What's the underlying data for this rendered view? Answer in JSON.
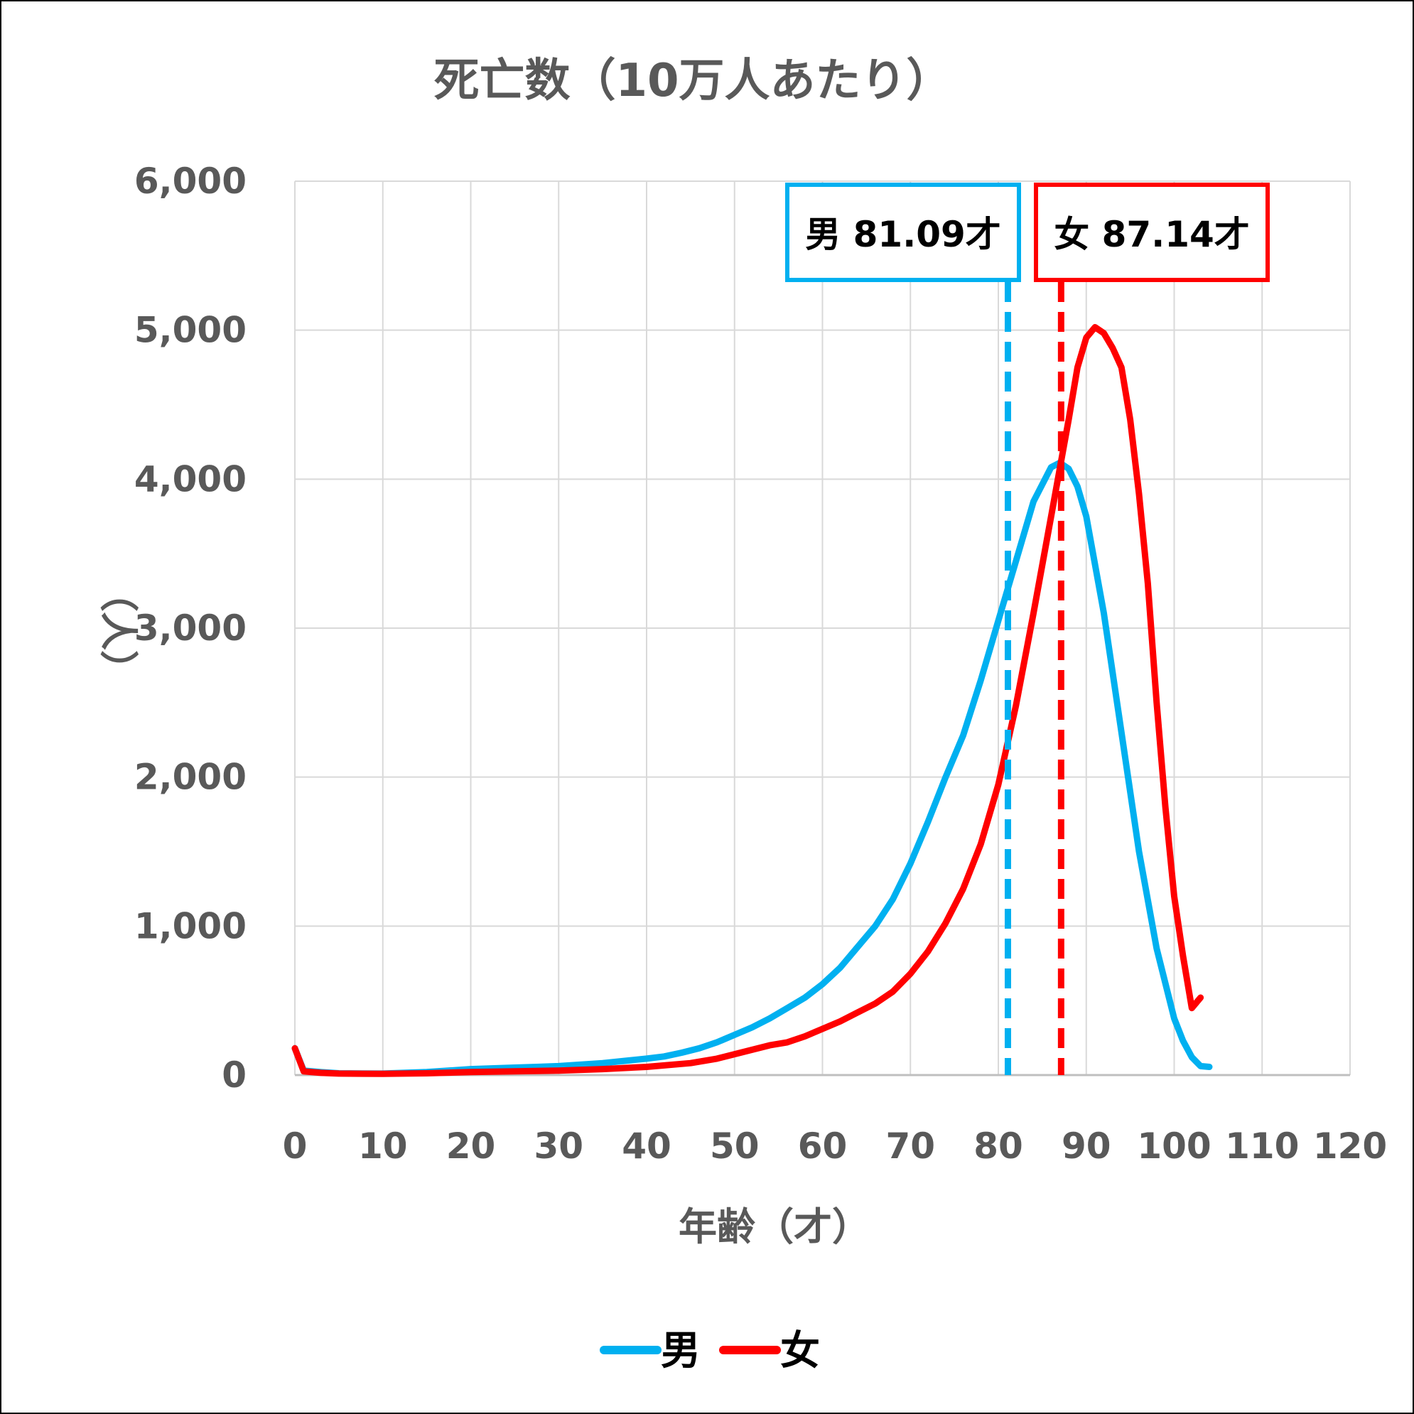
{
  "chart_data": {
    "type": "line",
    "title": "死亡数（10万人あたり）",
    "xlabel": "年齢（才）",
    "ylabel": "（人）",
    "xlim": [
      0,
      120
    ],
    "ylim": [
      0,
      6000
    ],
    "xticks": [
      0,
      10,
      20,
      30,
      40,
      50,
      60,
      70,
      80,
      90,
      100,
      110,
      120
    ],
    "xtick_labels": [
      "0",
      "10",
      "20",
      "30",
      "40",
      "50",
      "60",
      "70",
      "80",
      "90",
      "100",
      "110",
      "120"
    ],
    "yticks": [
      0,
      1000,
      2000,
      3000,
      4000,
      5000,
      6000
    ],
    "ytick_labels": [
      "0",
      "1,000",
      "2,000",
      "3,000",
      "4,000",
      "5,000",
      "6,000"
    ],
    "grid": true,
    "legend_position": "bottom",
    "series": [
      {
        "name": "男",
        "color": "#00B0F0",
        "points": [
          [
            0,
            180
          ],
          [
            1,
            30
          ],
          [
            3,
            20
          ],
          [
            5,
            12
          ],
          [
            10,
            10
          ],
          [
            15,
            20
          ],
          [
            20,
            40
          ],
          [
            25,
            50
          ],
          [
            30,
            60
          ],
          [
            35,
            80
          ],
          [
            40,
            110
          ],
          [
            42,
            125
          ],
          [
            44,
            150
          ],
          [
            46,
            180
          ],
          [
            48,
            220
          ],
          [
            50,
            270
          ],
          [
            52,
            320
          ],
          [
            54,
            380
          ],
          [
            56,
            450
          ],
          [
            58,
            520
          ],
          [
            60,
            610
          ],
          [
            62,
            720
          ],
          [
            64,
            860
          ],
          [
            66,
            1000
          ],
          [
            68,
            1180
          ],
          [
            70,
            1420
          ],
          [
            72,
            1700
          ],
          [
            74,
            2000
          ],
          [
            76,
            2280
          ],
          [
            78,
            2650
          ],
          [
            80,
            3050
          ],
          [
            82,
            3450
          ],
          [
            84,
            3850
          ],
          [
            86,
            4080
          ],
          [
            87,
            4110
          ],
          [
            88,
            4070
          ],
          [
            89,
            3950
          ],
          [
            90,
            3750
          ],
          [
            92,
            3100
          ],
          [
            94,
            2300
          ],
          [
            96,
            1500
          ],
          [
            98,
            850
          ],
          [
            100,
            380
          ],
          [
            101,
            230
          ],
          [
            102,
            120
          ],
          [
            103,
            60
          ],
          [
            104,
            55
          ]
        ]
      },
      {
        "name": "女",
        "color": "#FF0000",
        "points": [
          [
            0,
            180
          ],
          [
            1,
            25
          ],
          [
            3,
            15
          ],
          [
            5,
            10
          ],
          [
            10,
            8
          ],
          [
            15,
            12
          ],
          [
            20,
            20
          ],
          [
            25,
            25
          ],
          [
            30,
            30
          ],
          [
            35,
            40
          ],
          [
            40,
            55
          ],
          [
            45,
            80
          ],
          [
            48,
            110
          ],
          [
            50,
            140
          ],
          [
            52,
            170
          ],
          [
            54,
            200
          ],
          [
            56,
            220
          ],
          [
            58,
            260
          ],
          [
            60,
            310
          ],
          [
            62,
            360
          ],
          [
            64,
            420
          ],
          [
            66,
            480
          ],
          [
            68,
            560
          ],
          [
            70,
            680
          ],
          [
            72,
            830
          ],
          [
            74,
            1020
          ],
          [
            76,
            1250
          ],
          [
            78,
            1550
          ],
          [
            80,
            1950
          ],
          [
            82,
            2480
          ],
          [
            84,
            3100
          ],
          [
            86,
            3750
          ],
          [
            88,
            4400
          ],
          [
            89,
            4750
          ],
          [
            90,
            4950
          ],
          [
            91,
            5020
          ],
          [
            92,
            4980
          ],
          [
            93,
            4880
          ],
          [
            94,
            4750
          ],
          [
            95,
            4400
          ],
          [
            96,
            3900
          ],
          [
            97,
            3300
          ],
          [
            98,
            2500
          ],
          [
            99,
            1800
          ],
          [
            100,
            1200
          ],
          [
            101,
            800
          ],
          [
            102,
            450
          ],
          [
            103,
            520
          ]
        ]
      }
    ],
    "reference_lines": [
      {
        "label": "男 81.09才",
        "x": 81.09,
        "color": "#00B0F0"
      },
      {
        "label": "女 87.14才",
        "x": 87.14,
        "color": "#FF0000"
      }
    ]
  }
}
